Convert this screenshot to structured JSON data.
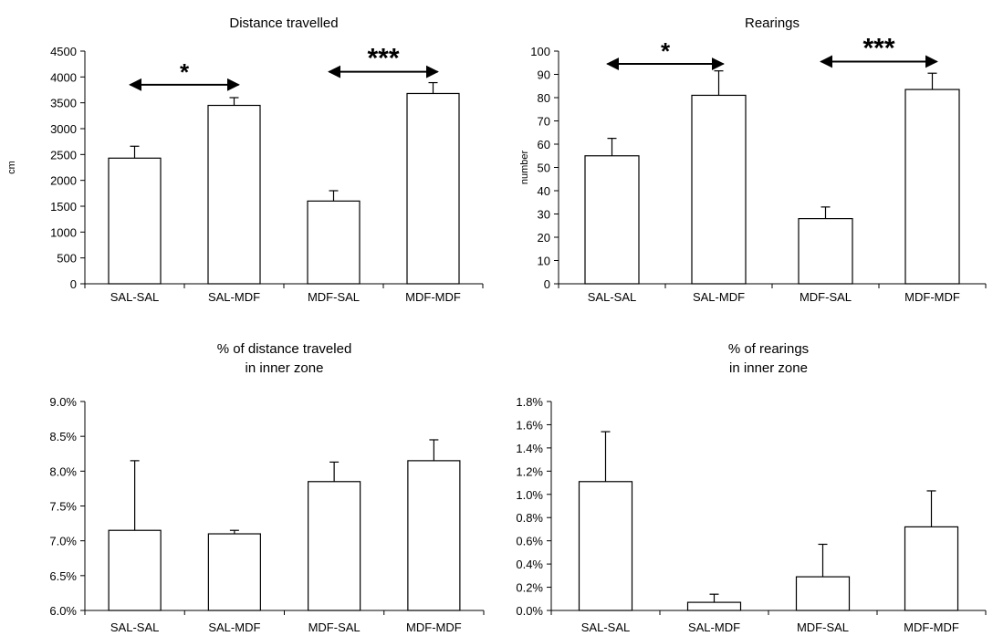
{
  "chart_data": [
    {
      "type": "bar",
      "title": "Distance travelled",
      "subtitle": "",
      "xlabel": "",
      "ylabel": "cm",
      "ylim": [
        0,
        4500
      ],
      "yticks": [
        0,
        500,
        1000,
        1500,
        2000,
        2500,
        3000,
        3500,
        4000,
        4500
      ],
      "ytick_labels": [
        "0",
        "500",
        "1000",
        "1500",
        "2000",
        "2500",
        "3000",
        "3500",
        "4000",
        "4500"
      ],
      "categories": [
        "SAL-SAL",
        "SAL-MDF",
        "MDF-SAL",
        "MDF-MDF"
      ],
      "values": [
        2430,
        3450,
        1600,
        3680
      ],
      "errors": [
        230,
        150,
        200,
        210
      ],
      "bar_color": "#ffffff",
      "grid": false,
      "annotations": [
        {
          "text": "*",
          "from": "SAL-SAL",
          "to": "SAL-MDF",
          "y": 3850
        },
        {
          "text": "***",
          "from": "MDF-SAL",
          "to": "MDF-MDF",
          "y": 4100
        }
      ]
    },
    {
      "type": "bar",
      "title": "Rearings",
      "subtitle": "",
      "xlabel": "",
      "ylabel": "number",
      "ylim": [
        0,
        100
      ],
      "yticks": [
        0,
        10,
        20,
        30,
        40,
        50,
        60,
        70,
        80,
        90,
        100
      ],
      "ytick_labels": [
        "0",
        "10",
        "20",
        "30",
        "40",
        "50",
        "60",
        "70",
        "80",
        "90",
        "100"
      ],
      "categories": [
        "SAL-SAL",
        "SAL-MDF",
        "MDF-SAL",
        "MDF-MDF"
      ],
      "values": [
        55,
        81,
        28,
        83.5
      ],
      "errors": [
        7.5,
        10.5,
        5,
        7
      ],
      "bar_color": "#ffffff",
      "grid": false,
      "annotations": [
        {
          "text": "*",
          "from": "SAL-SAL",
          "to": "SAL-MDF",
          "y": 94.5
        },
        {
          "text": "***",
          "from": "MDF-SAL",
          "to": "MDF-MDF",
          "y": 95.5
        }
      ]
    },
    {
      "type": "bar",
      "title": "% of distance traveled",
      "subtitle": "in inner zone",
      "xlabel": "",
      "ylabel": "",
      "ylim": [
        6.0,
        9.0
      ],
      "yticks": [
        6.0,
        6.5,
        7.0,
        7.5,
        8.0,
        8.5,
        9.0
      ],
      "ytick_labels": [
        "6.0%",
        "6.5%",
        "7.0%",
        "7.5%",
        "8.0%",
        "8.5%",
        "9.0%"
      ],
      "categories": [
        "SAL-SAL",
        "SAL-MDF",
        "MDF-SAL",
        "MDF-MDF"
      ],
      "values": [
        7.15,
        7.1,
        7.85,
        8.15
      ],
      "errors": [
        1.0,
        0.05,
        0.28,
        0.3
      ],
      "bar_color": "#ffffff",
      "grid": false,
      "annotations": []
    },
    {
      "type": "bar",
      "title": "% of rearings",
      "subtitle": "in inner zone",
      "xlabel": "",
      "ylabel": "",
      "ylim": [
        0.0,
        1.8
      ],
      "yticks": [
        0.0,
        0.2,
        0.4,
        0.6,
        0.8,
        1.0,
        1.2,
        1.4,
        1.6,
        1.8
      ],
      "ytick_labels": [
        "0.0%",
        "0.2%",
        "0.4%",
        "0.6%",
        "0.8%",
        "1.0%",
        "1.2%",
        "1.4%",
        "1.6%",
        "1.8%"
      ],
      "categories": [
        "SAL-SAL",
        "SAL-MDF",
        "MDF-SAL",
        "MDF-MDF"
      ],
      "values": [
        1.11,
        0.07,
        0.29,
        0.72
      ],
      "errors": [
        0.43,
        0.07,
        0.28,
        0.31
      ],
      "bar_color": "#ffffff",
      "grid": false,
      "annotations": []
    }
  ]
}
